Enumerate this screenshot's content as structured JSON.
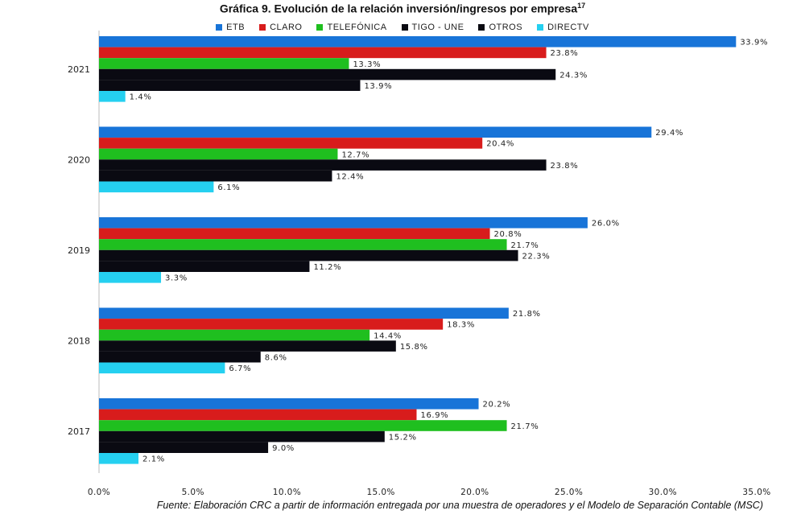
{
  "chart_data": {
    "type": "bar",
    "orientation": "horizontal",
    "title": "Gráfica 9. Evolución de la relación inversión/ingresos por empresa",
    "title_footnote": "17",
    "categories": [
      "2021",
      "2020",
      "2019",
      "2018",
      "2017"
    ],
    "series": [
      {
        "name": "ETB",
        "color": "#1874d8",
        "values": [
          33.9,
          29.4,
          26.0,
          21.8,
          20.2
        ]
      },
      {
        "name": "CLARO",
        "color": "#d81c1c",
        "values": [
          23.8,
          20.4,
          20.8,
          18.3,
          16.9
        ]
      },
      {
        "name": "TELEFÓNICA",
        "color": "#1fbf1f",
        "values": [
          13.3,
          12.7,
          21.7,
          14.4,
          21.7
        ]
      },
      {
        "name": "TIGO - UNE",
        "color": "#0a0a12",
        "values": [
          24.3,
          23.8,
          22.3,
          15.8,
          15.2
        ]
      },
      {
        "name": "OTROS",
        "color": "#0a0a12",
        "values": [
          13.9,
          12.4,
          11.2,
          8.6,
          9.0
        ]
      },
      {
        "name": "DIRECTV",
        "color": "#25d0f0",
        "values": [
          1.4,
          6.1,
          3.3,
          6.7,
          2.1
        ]
      }
    ],
    "xlim": [
      0,
      35
    ],
    "xticks": [
      "0.0%",
      "5.0%",
      "10.0%",
      "15.0%",
      "20.0%",
      "25.0%",
      "30.0%",
      "35.0%"
    ],
    "value_suffix": "%",
    "legend_position": "top",
    "grid": false
  },
  "source_note": "Fuente: Elaboración CRC a partir de información entregada por una muestra de operadores y el Modelo de Separación Contable (MSC)"
}
